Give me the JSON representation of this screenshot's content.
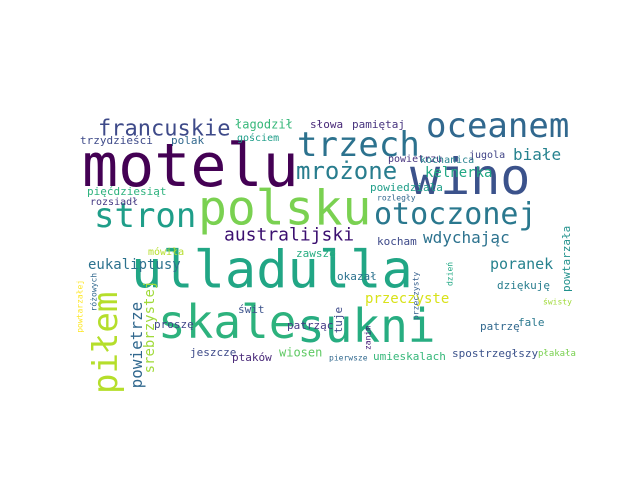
{
  "words": [
    {
      "text": "ulladulla",
      "color": "#21a685",
      "rotate": false
    },
    {
      "text": "skale",
      "color": "#2db27d",
      "rotate": false
    },
    {
      "text": "sukni",
      "color": "#27ad81",
      "rotate": false
    },
    {
      "text": "motelu",
      "color": "#440154",
      "rotate": false
    },
    {
      "text": "wino",
      "color": "#3b528b",
      "rotate": false
    },
    {
      "text": "polsku",
      "color": "#7ad151",
      "rotate": false
    },
    {
      "text": "oceanem",
      "color": "#31688e",
      "rotate": false
    },
    {
      "text": "trzech",
      "color": "#2c728e",
      "rotate": false
    },
    {
      "text": "stron",
      "color": "#1f9e89",
      "rotate": false
    },
    {
      "text": "otoczonej",
      "color": "#2a788e",
      "rotate": false
    },
    {
      "text": "piłem",
      "color": "#b5de2b",
      "rotate": true
    },
    {
      "text": "mrożone",
      "color": "#287d8e",
      "rotate": false
    },
    {
      "text": "francuskie",
      "color": "#3e4a89",
      "rotate": false
    },
    {
      "text": "australijski",
      "color": "#3b0f70",
      "rotate": false
    },
    {
      "text": "wdychając",
      "color": "#2c728e",
      "rotate": false
    },
    {
      "text": "eukaliptusy",
      "color": "#2c728e",
      "rotate": false
    },
    {
      "text": "poranek",
      "color": "#26828e",
      "rotate": false
    },
    {
      "text": "powietrze",
      "color": "#31688e",
      "rotate": true
    },
    {
      "text": "przeczyste",
      "color": "#d8e219",
      "rotate": false
    },
    {
      "text": "białe",
      "color": "#26828e",
      "rotate": false
    },
    {
      "text": "kelnerka",
      "color": "#22a884",
      "rotate": false
    },
    {
      "text": "srebrzystej",
      "color": "#a0da39",
      "rotate": true
    },
    {
      "text": "łagodził",
      "color": "#35b779",
      "rotate": false
    },
    {
      "text": "słowa",
      "color": "#482878",
      "rotate": false
    },
    {
      "text": "pamiętaj",
      "color": "#46337e",
      "rotate": false
    },
    {
      "text": "trzydzieści",
      "color": "#3e4a89",
      "rotate": false
    },
    {
      "text": "polak",
      "color": "#31688e",
      "rotate": false
    },
    {
      "text": "gościem",
      "color": "#1f9e89",
      "rotate": false
    },
    {
      "text": "powietrzu",
      "color": "#46337e",
      "rotate": false
    },
    {
      "text": "kochanica",
      "color": "#26828e",
      "rotate": false
    },
    {
      "text": "jugola",
      "color": "#414487",
      "rotate": false
    },
    {
      "text": "pięćdziesiąt",
      "color": "#2db27d",
      "rotate": false
    },
    {
      "text": "powiedziała",
      "color": "#1f9e89",
      "rotate": false
    },
    {
      "text": "rozległy",
      "color": "#31688e",
      "rotate": false
    },
    {
      "text": "rozsiadł",
      "color": "#443983",
      "rotate": false
    },
    {
      "text": "powtarzała",
      "color": "#21918c",
      "rotate": true
    },
    {
      "text": "powtarzałej",
      "color": "#fde725",
      "rotate": true
    },
    {
      "text": "różowych",
      "color": "#31688e",
      "rotate": true
    },
    {
      "text": "kocham",
      "color": "#3e4a89",
      "rotate": false
    },
    {
      "text": "dziękuję",
      "color": "#287d8e",
      "rotate": false
    },
    {
      "text": "przeczysty",
      "color": "#355f8d",
      "rotate": true
    },
    {
      "text": "dzień",
      "color": "#22a884",
      "rotate": true
    },
    {
      "text": "mówiła",
      "color": "#b5de2b",
      "rotate": false
    },
    {
      "text": "zawsze",
      "color": "#27ad81",
      "rotate": false
    },
    {
      "text": "okazał",
      "color": "#2c728e",
      "rotate": false
    },
    {
      "text": "tuje",
      "color": "#3e4a89",
      "rotate": true
    },
    {
      "text": "świt",
      "color": "#3b528b",
      "rotate": false
    },
    {
      "text": "proszę",
      "color": "#404688",
      "rotate": false
    },
    {
      "text": "patrząc",
      "color": "#443983",
      "rotate": false
    },
    {
      "text": "patrzę",
      "color": "#31688e",
      "rotate": false
    },
    {
      "text": "świsty",
      "color": "#a0da39",
      "rotate": false
    },
    {
      "text": "zanim",
      "color": "#3b0f70",
      "rotate": true
    },
    {
      "text": "fale",
      "color": "#2a788e",
      "rotate": false
    },
    {
      "text": "jeszcze",
      "color": "#3e4a89",
      "rotate": false
    },
    {
      "text": "ptaków",
      "color": "#482878",
      "rotate": false
    },
    {
      "text": "wiosen",
      "color": "#5ec962",
      "rotate": false
    },
    {
      "text": "pierwsze",
      "color": "#31688e",
      "rotate": false
    },
    {
      "text": "umieskalach",
      "color": "#35b779",
      "rotate": false
    },
    {
      "text": "spostrzegłszy",
      "color": "#3b528b",
      "rotate": false
    },
    {
      "text": "płakała",
      "color": "#7ad151",
      "rotate": false
    }
  ]
}
